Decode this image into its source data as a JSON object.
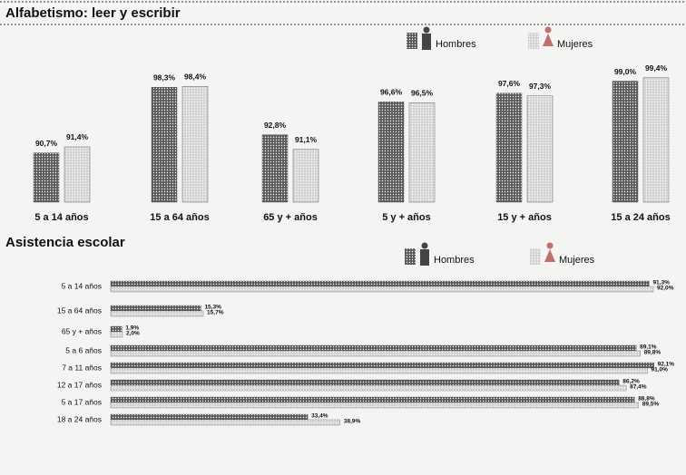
{
  "chart_data": [
    {
      "type": "bar",
      "title": "Alfabetismo: leer y escribir",
      "categories": [
        "5 a 14 años",
        "15 a 64 años",
        "65 y + años",
        "5 y + años",
        "15 y + años",
        "15 a 24 años"
      ],
      "series": [
        {
          "name": "Hombres",
          "color": "#5a5a5a",
          "values": [
            90.7,
            98.3,
            92.8,
            96.6,
            97.6,
            99.0
          ],
          "value_labels": [
            "90,7%",
            "98,3%",
            "92,8%",
            "96,6%",
            "97,6%",
            "99,0%"
          ]
        },
        {
          "name": "Mujeres",
          "color": "#d4d4d4",
          "values": [
            91.4,
            98.4,
            91.1,
            96.5,
            97.3,
            99.4
          ],
          "value_labels": [
            "91,4%",
            "98,4%",
            "91,1%",
            "96,5%",
            "97,3%",
            "99,4%"
          ]
        }
      ],
      "ylim": [
        85,
        100
      ]
    },
    {
      "type": "barh",
      "title": "Asistencia escolar",
      "categories": [
        "5 a 14 años",
        "15 a 64 años",
        "65 y + años",
        "5 a 6 años",
        "7 a 11 años",
        "12 a 17 años",
        "5 a 17 años",
        "18 a 24 años"
      ],
      "series": [
        {
          "name": "Hombres",
          "color": "#5a5a5a",
          "values": [
            91.3,
            15.3,
            1.9,
            89.1,
            92.1,
            86.2,
            88.8,
            33.4
          ],
          "value_labels": [
            "91,3%",
            "15,3%",
            "1,9%",
            "89,1%",
            "92,1%",
            "86,2%",
            "88,8%",
            "33,4%"
          ]
        },
        {
          "name": "Mujeres",
          "color": "#d4d4d4",
          "values": [
            92.0,
            15.7,
            2.0,
            89.8,
            91.0,
            87.4,
            89.5,
            38.9
          ],
          "value_labels": [
            "92,0%",
            "15,7%",
            "2,0%",
            "89,8%",
            "91,0%",
            "87,4%",
            "89,5%",
            "38,9%"
          ]
        }
      ],
      "xlim": [
        0,
        100
      ]
    }
  ]
}
